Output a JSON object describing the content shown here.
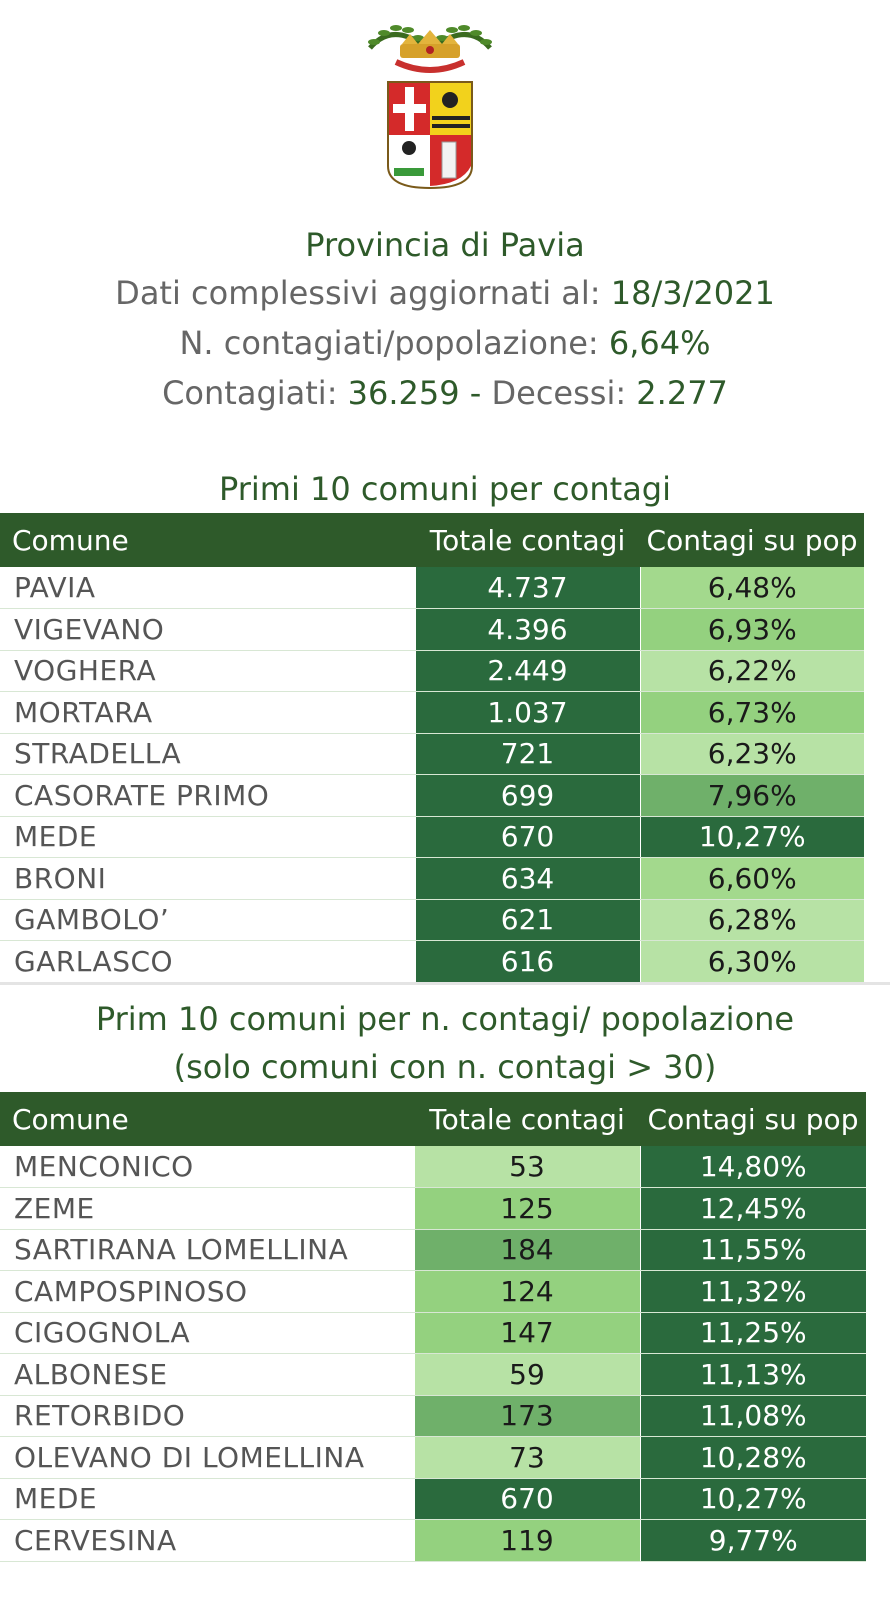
{
  "crest": {
    "name": "Provincia di Pavia coat of arms"
  },
  "header": {
    "title": "Provincia di Pavia",
    "date_label": "Dati complessivi aggiornati al:",
    "date_value": "18/3/2021",
    "ratio_label": "N. contagiati/popolazione:",
    "ratio_value": "6,64%",
    "cases_label": "Contagiati:",
    "cases_value": "36.259",
    "dash": "-",
    "deaths_label": "Decessi:",
    "deaths_value": "2.277"
  },
  "table1": {
    "title": "Primi 10 comuni per contagi",
    "columns": [
      "Comune",
      "Totale contagi",
      "Contagi su pop"
    ],
    "rows": [
      [
        "PAVIA",
        "4.737",
        "6,48%"
      ],
      [
        "VIGEVANO",
        "4.396",
        "6,93%"
      ],
      [
        "VOGHERA",
        "2.449",
        "6,22%"
      ],
      [
        "MORTARA",
        "1.037",
        "6,73%"
      ],
      [
        "STRADELLA",
        "721",
        "6,23%"
      ],
      [
        "CASORATE PRIMO",
        "699",
        "7,96%"
      ],
      [
        "MEDE",
        "670",
        "10,27%"
      ],
      [
        "BRONI",
        "634",
        "6,60%"
      ],
      [
        "GAMBOLO’",
        "621",
        "6,28%"
      ],
      [
        "GARLASCO",
        "616",
        "6,30%"
      ]
    ]
  },
  "table2": {
    "title_line1": "Prim 10 comuni per n. contagi/ popolazione",
    "title_line2": "(solo comuni con n. contagi > 30)",
    "columns": [
      "Comune",
      "Totale contagi",
      "Contagi su pop"
    ],
    "rows": [
      [
        "MENCONICO",
        "53",
        "14,80%"
      ],
      [
        "ZEME",
        "125",
        "12,45%"
      ],
      [
        "SARTIRANA LOMELLINA",
        "184",
        "11,55%"
      ],
      [
        "CAMPOSPINOSO",
        "124",
        "11,32%"
      ],
      [
        "CIGOGNOLA",
        "147",
        "11,25%"
      ],
      [
        "ALBONESE",
        "59",
        "11,13%"
      ],
      [
        "RETORBIDO",
        "173",
        "11,08%"
      ],
      [
        "OLEVANO DI LOMELLINA",
        "73",
        "10,28%"
      ],
      [
        "MEDE",
        "670",
        "10,27%"
      ],
      [
        "CERVESINA",
        "119",
        "9,77%"
      ]
    ]
  },
  "colors": {
    "header_green": "#2e5a2a",
    "dark_cell": "#2a6a3d",
    "medium_cell": "#6fb06a",
    "light_cell": "#a3d98d"
  }
}
